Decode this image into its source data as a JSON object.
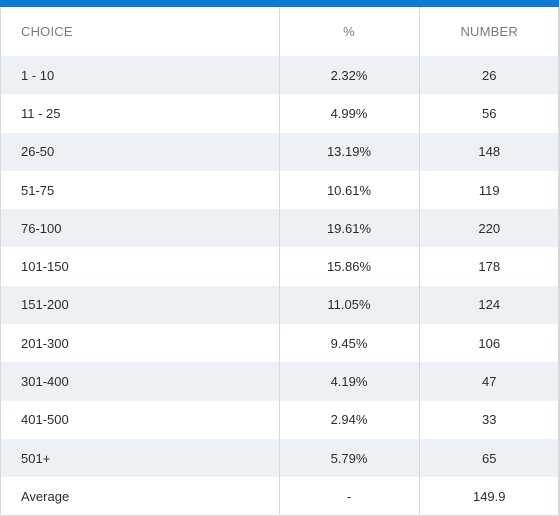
{
  "colors": {
    "accent_bar": "#0f7ad1",
    "row_alt": "#edf0f5",
    "header_text": "#7a7a7a",
    "body_text": "#2d2d2d"
  },
  "table": {
    "headers": {
      "choice": "CHOICE",
      "percent": "%",
      "number": "NUMBER"
    },
    "rows": [
      {
        "choice": "1 - 10",
        "percent": "2.32%",
        "number": "26"
      },
      {
        "choice": "11 - 25",
        "percent": "4.99%",
        "number": "56"
      },
      {
        "choice": "26-50",
        "percent": "13.19%",
        "number": "148"
      },
      {
        "choice": "51-75",
        "percent": "10.61%",
        "number": "119"
      },
      {
        "choice": "76-100",
        "percent": "19.61%",
        "number": "220"
      },
      {
        "choice": "101-150",
        "percent": "15.86%",
        "number": "178"
      },
      {
        "choice": "151-200",
        "percent": "11.05%",
        "number": "124"
      },
      {
        "choice": "201-300",
        "percent": "9.45%",
        "number": "106"
      },
      {
        "choice": "301-400",
        "percent": "4.19%",
        "number": "47"
      },
      {
        "choice": "401-500",
        "percent": "2.94%",
        "number": "33"
      },
      {
        "choice": "501+",
        "percent": "5.79%",
        "number": "65"
      },
      {
        "choice": "Average",
        "percent": "-",
        "number": "149.9"
      }
    ]
  }
}
